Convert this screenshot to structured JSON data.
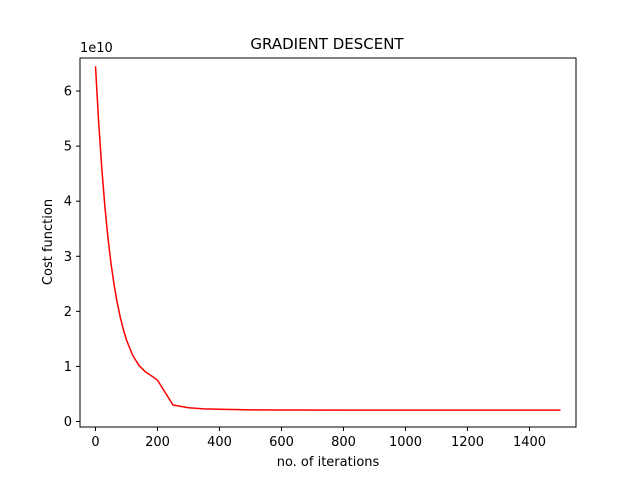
{
  "chart_data": {
    "type": "line",
    "title": "GRADIENT DESCENT",
    "xlabel": "no. of iterations",
    "ylabel": "Cost function",
    "y_offset_label": "1e10",
    "xlim": [
      -50,
      1550
    ],
    "ylim": [
      -0.1,
      6.6
    ],
    "xticks": [
      0,
      200,
      400,
      600,
      800,
      1000,
      1200,
      1400
    ],
    "yticks": [
      0,
      1,
      2,
      3,
      4,
      5,
      6
    ],
    "xtick_labels": [
      "0",
      "200",
      "400",
      "600",
      "800",
      "1000",
      "1200",
      "1400"
    ],
    "ytick_labels": [
      "0",
      "1",
      "2",
      "3",
      "4",
      "5",
      "6"
    ],
    "grid": false,
    "series": [
      {
        "color": "#ff0000",
        "x": [
          0,
          10,
          20,
          30,
          40,
          50,
          60,
          70,
          80,
          90,
          100,
          120,
          140,
          160,
          180,
          200,
          250,
          300,
          350,
          400,
          500,
          600,
          800,
          1000,
          1200,
          1400,
          1500
        ],
        "y": [
          6.45,
          5.45,
          4.62,
          3.92,
          3.35,
          2.87,
          2.48,
          2.16,
          1.89,
          1.67,
          1.48,
          1.2,
          1.02,
          0.905,
          0.83,
          0.75,
          0.3,
          0.25,
          0.23,
          0.222,
          0.212,
          0.209,
          0.207,
          0.206,
          0.206,
          0.206,
          0.206
        ]
      }
    ]
  }
}
